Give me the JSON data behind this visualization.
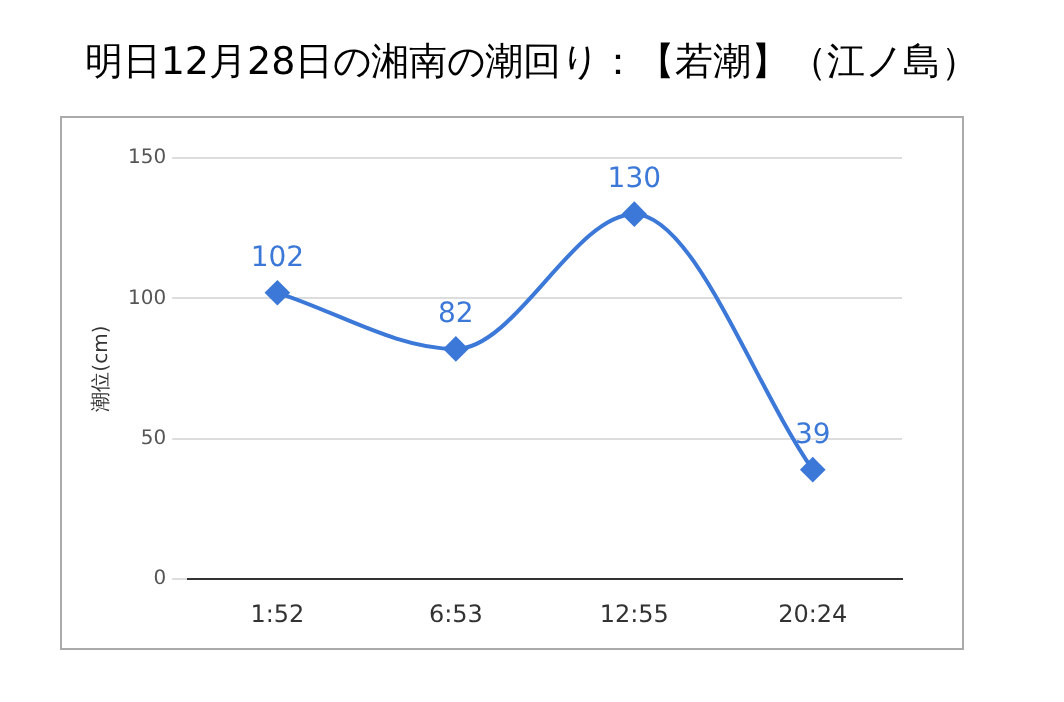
{
  "chart_data": {
    "type": "line",
    "title": "明日12月28日の湘南の潮回り：【若潮】（江ノ島）",
    "ylabel": "潮位(cm)",
    "categories": [
      "1:52",
      "6:53",
      "12:55",
      "20:24"
    ],
    "series": [
      {
        "color": "#3c78d8",
        "values": [
          102,
          82,
          130,
          39
        ]
      }
    ],
    "ylim": [
      0,
      150
    ],
    "yticks": [
      0,
      50,
      100,
      150
    ],
    "grid": "y",
    "marker": "diamond",
    "data_labels": true,
    "legend": false
  }
}
